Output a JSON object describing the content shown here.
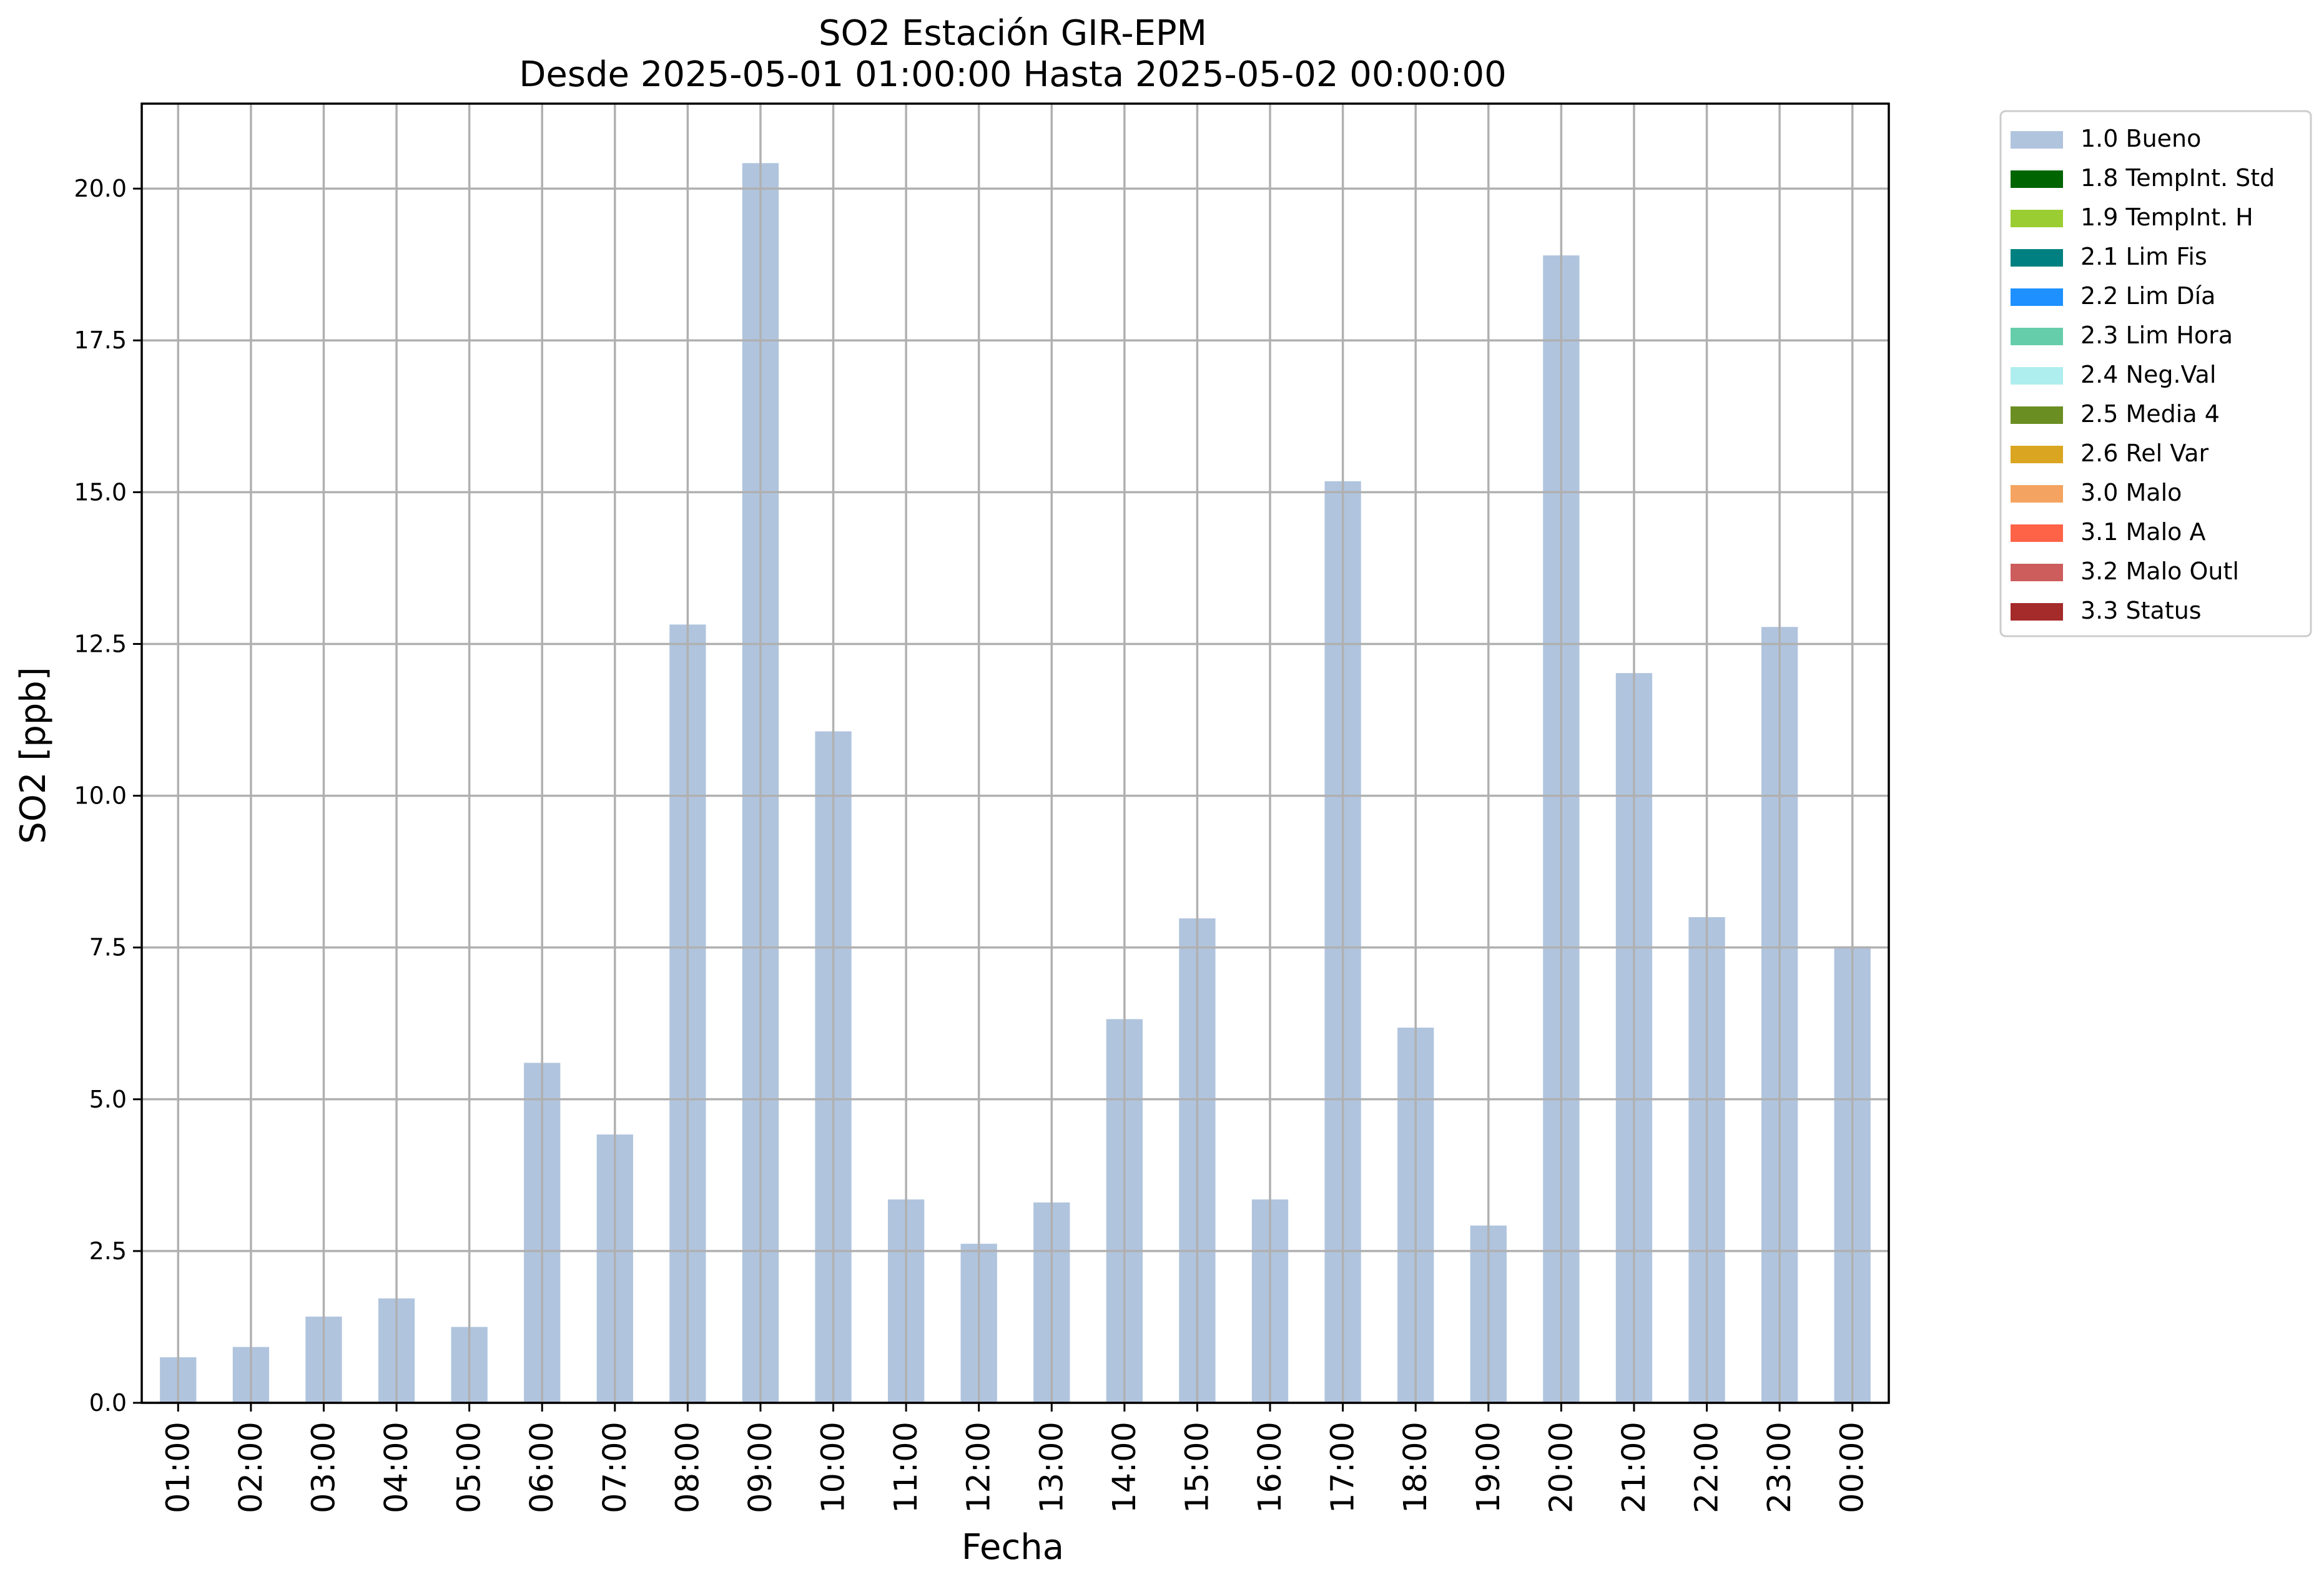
{
  "chart_data": {
    "type": "bar",
    "title": "SO2 Estación GIR-EPM",
    "subtitle": "Desde 2025-05-01 01:00:00 Hasta 2025-05-02 00:00:00",
    "xlabel": "Fecha",
    "ylabel": "SO2 [ppb]",
    "ylim": [
      0,
      21.4
    ],
    "grid": true,
    "legend_position": "outside-top-right",
    "categories": [
      "01:00",
      "02:00",
      "03:00",
      "04:00",
      "05:00",
      "06:00",
      "07:00",
      "08:00",
      "09:00",
      "10:00",
      "11:00",
      "12:00",
      "13:00",
      "14:00",
      "15:00",
      "16:00",
      "17:00",
      "18:00",
      "19:00",
      "20:00",
      "21:00",
      "22:00",
      "23:00",
      "00:00"
    ],
    "yticks": [
      "0.0",
      "2.5",
      "5.0",
      "7.5",
      "10.0",
      "12.5",
      "15.0",
      "17.5",
      "20.0"
    ],
    "series": [
      {
        "name": "1.0 Bueno",
        "color": "#b0c4de",
        "values": [
          0.75,
          0.92,
          1.42,
          1.72,
          1.25,
          5.6,
          4.42,
          12.82,
          20.42,
          11.06,
          3.35,
          2.62,
          3.3,
          6.32,
          7.98,
          3.35,
          15.18,
          6.18,
          2.92,
          18.9,
          12.02,
          8.0,
          12.78,
          7.52
        ]
      }
    ],
    "legend": [
      {
        "label": "1.0 Bueno",
        "color": "#b0c4de"
      },
      {
        "label": "1.8 TempInt. Std",
        "color": "#006400"
      },
      {
        "label": "1.9 TempInt. H",
        "color": "#9acd32"
      },
      {
        "label": "2.1 Lim Fis",
        "color": "#008080"
      },
      {
        "label": "2.2 Lim Día",
        "color": "#1e90ff"
      },
      {
        "label": "2.3 Lim Hora",
        "color": "#66cdaa"
      },
      {
        "label": "2.4 Neg.Val",
        "color": "#afeeee"
      },
      {
        "label": "2.5 Media 4",
        "color": "#6b8e23"
      },
      {
        "label": "2.6 Rel Var",
        "color": "#daa520"
      },
      {
        "label": "3.0 Malo",
        "color": "#f4a460"
      },
      {
        "label": "3.1 Malo A",
        "color": "#ff6347"
      },
      {
        "label": "3.2 Malo Outl",
        "color": "#cd5c5c"
      },
      {
        "label": "3.3 Status",
        "color": "#a52a2a"
      }
    ]
  }
}
